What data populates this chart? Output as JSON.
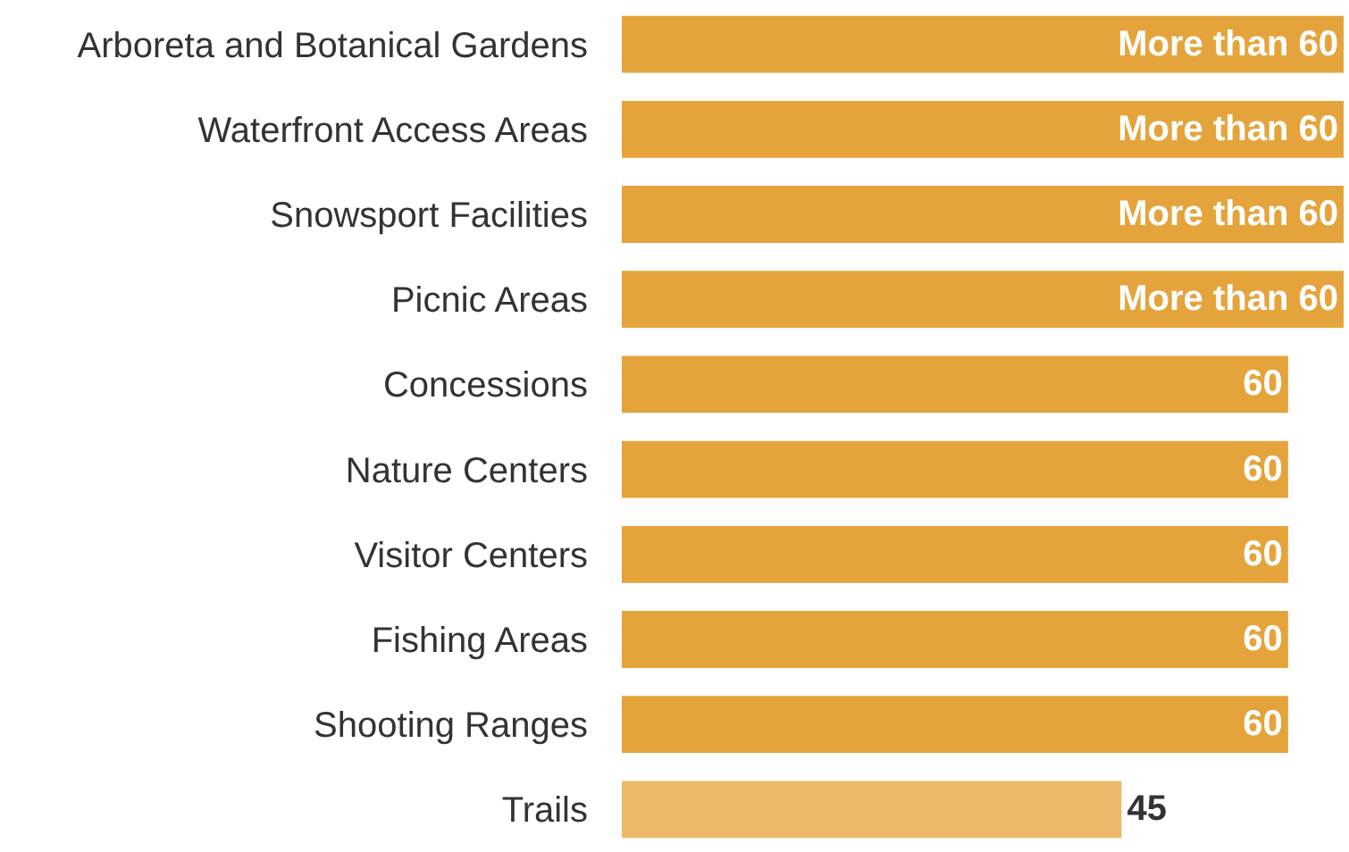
{
  "chart_data": {
    "type": "bar",
    "orientation": "horizontal",
    "categories": [
      "Arboreta and Botanical Gardens",
      "Waterfront Access Areas",
      "Snowsport Facilities",
      "Picnic Areas",
      "Concessions",
      "Nature Centers",
      "Visitor Centers",
      "Fishing Areas",
      "Shooting Ranges",
      "Trails"
    ],
    "values": [
      65,
      65,
      65,
      65,
      60,
      60,
      60,
      60,
      60,
      45
    ],
    "value_labels": [
      "More than 60",
      "More than 60",
      "More than 60",
      "More than 60",
      "60",
      "60",
      "60",
      "60",
      "60",
      "45"
    ],
    "colors": [
      "#e5a43b",
      "#e5a43b",
      "#e5a43b",
      "#e5a43b",
      "#e5a43b",
      "#e5a43b",
      "#e5a43b",
      "#e5a43b",
      "#e5a43b",
      "#ecb96b"
    ]
  }
}
